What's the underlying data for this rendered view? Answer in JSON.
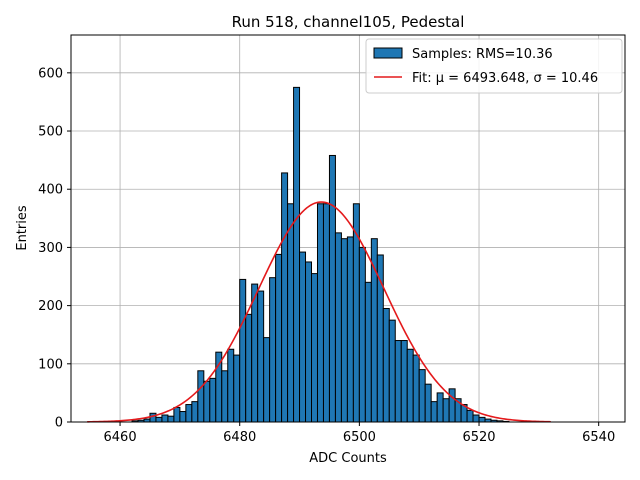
{
  "chart_data": {
    "type": "bar",
    "title": "Run 518, channel105, Pedestal",
    "xlabel": "ADC Counts",
    "ylabel": "Entries",
    "xlim": [
      6451.8,
      6544.4
    ],
    "ylim": [
      0,
      665
    ],
    "grid": true,
    "legend_position": "top-right",
    "xticks": [
      6460,
      6480,
      6500,
      6520,
      6540
    ],
    "yticks": [
      0,
      100,
      200,
      300,
      400,
      500,
      600
    ],
    "bin_width": 1,
    "histogram": {
      "name": "Samples: RMS=10.36",
      "color": "#1f77b4",
      "edge_color": "#000000",
      "bin_left_edges": [
        6462,
        6463,
        6464,
        6465,
        6466,
        6467,
        6468,
        6469,
        6470,
        6471,
        6472,
        6473,
        6474,
        6475,
        6476,
        6477,
        6478,
        6479,
        6480,
        6481,
        6482,
        6483,
        6484,
        6485,
        6486,
        6487,
        6488,
        6489,
        6490,
        6491,
        6492,
        6493,
        6494,
        6495,
        6496,
        6497,
        6498,
        6499,
        6500,
        6501,
        6502,
        6503,
        6504,
        6505,
        6506,
        6507,
        6508,
        6509,
        6510,
        6511,
        6512,
        6513,
        6514,
        6515,
        6516,
        6517,
        6518,
        6519,
        6520,
        6521,
        6522,
        6523,
        6524
      ],
      "counts": [
        2,
        3,
        5,
        15,
        8,
        12,
        10,
        25,
        18,
        30,
        35,
        88,
        70,
        75,
        120,
        88,
        125,
        115,
        245,
        185,
        237,
        225,
        145,
        248,
        288,
        428,
        375,
        575,
        292,
        275,
        255,
        375,
        375,
        458,
        325,
        315,
        318,
        375,
        300,
        240,
        315,
        287,
        195,
        175,
        140,
        140,
        125,
        115,
        90,
        65,
        35,
        50,
        40,
        57,
        40,
        30,
        20,
        12,
        8,
        5,
        3,
        2,
        1
      ]
    },
    "fit": {
      "name": "Fit: μ = 6493.648, σ = 10.46",
      "color": "#e41a1c",
      "mu": 6493.648,
      "sigma": 10.46,
      "amplitude": 378,
      "x_range": [
        6454.5,
        6532
      ]
    }
  }
}
